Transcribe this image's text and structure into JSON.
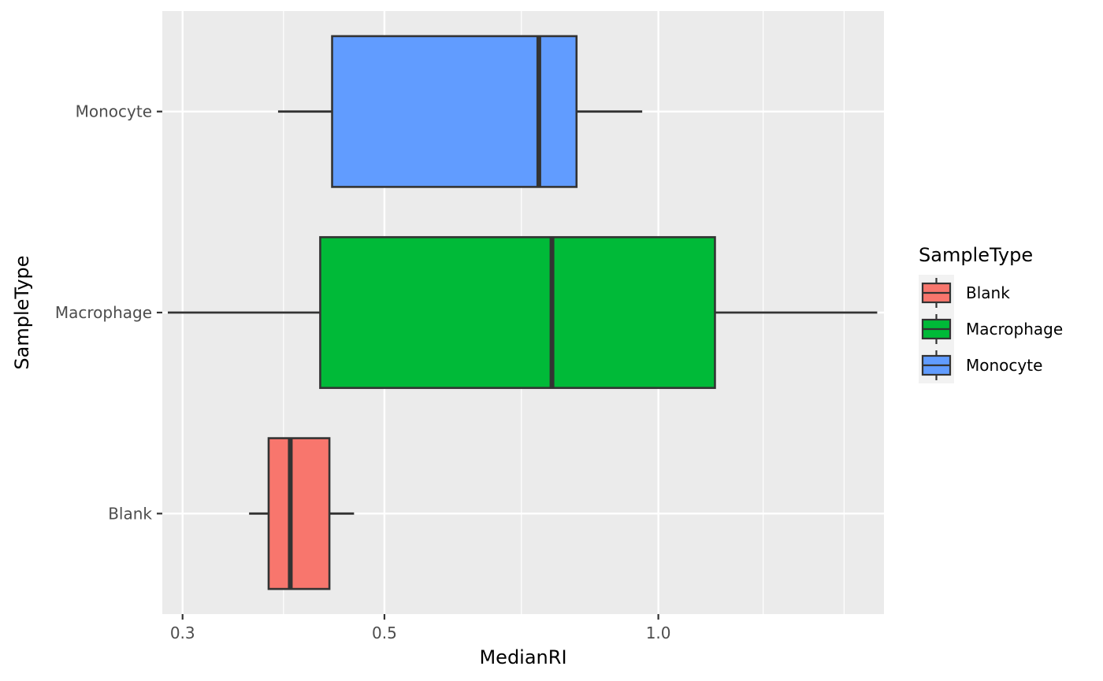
{
  "chart_data": {
    "type": "boxplot",
    "orientation": "horizontal",
    "title": "",
    "xlabel": "MedianRI",
    "ylabel": "SampleType",
    "x_scale": "log10",
    "xlim": [
      0.285,
      1.77
    ],
    "x_ticks": [
      {
        "value": 0.3,
        "label": "0.3"
      },
      {
        "value": 0.5,
        "label": "0.5"
      },
      {
        "value": 1.0,
        "label": "1.0"
      }
    ],
    "x_minor_gridlines": [
      0.3873,
      0.7071,
      1.3038,
      1.6
    ],
    "categories": [
      "Blank",
      "Macrophage",
      "Monocyte"
    ],
    "grid": true,
    "legend": {
      "title": "SampleType",
      "position": "right",
      "entries": [
        "Blank",
        "Macrophage",
        "Monocyte"
      ]
    },
    "series": [
      {
        "name": "Blank",
        "color": "#F8766D",
        "whisker_low": 0.355,
        "q1": 0.373,
        "median": 0.394,
        "q3": 0.435,
        "whisker_high": 0.463
      },
      {
        "name": "Macrophage",
        "color": "#00BA38",
        "whisker_low": 0.289,
        "q1": 0.425,
        "median": 0.764,
        "q3": 1.154,
        "whisker_high": 1.74
      },
      {
        "name": "Monocyte",
        "color": "#619CFF",
        "whisker_low": 0.382,
        "q1": 0.438,
        "median": 0.739,
        "q3": 0.813,
        "whisker_high": 0.96
      }
    ],
    "panel_background": "#EBEBEB",
    "grid_color": "#FFFFFF",
    "box_outline_color": "#333333"
  }
}
